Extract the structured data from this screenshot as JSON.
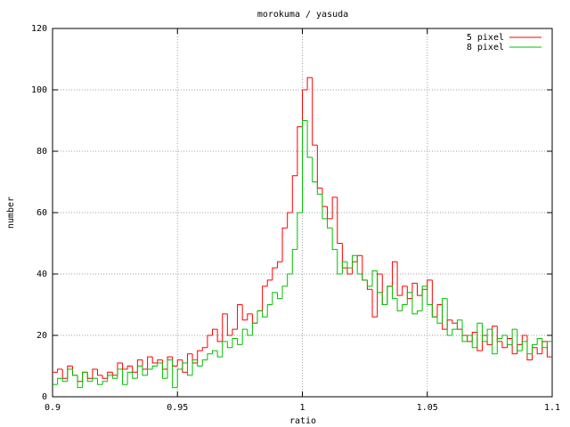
{
  "chart_data": {
    "type": "histogram",
    "title": "morokuma / yasuda",
    "xlabel": "ratio",
    "ylabel": "number",
    "bins": [
      0.9,
      0.902,
      0.904,
      0.906,
      0.908,
      0.91,
      0.912,
      0.914,
      0.916,
      0.918,
      0.92,
      0.922,
      0.924,
      0.926,
      0.928,
      0.93,
      0.932,
      0.934,
      0.936,
      0.938,
      0.94,
      0.942,
      0.944,
      0.946,
      0.948,
      0.95,
      0.952,
      0.954,
      0.956,
      0.958,
      0.96,
      0.962,
      0.964,
      0.966,
      0.968,
      0.97,
      0.972,
      0.974,
      0.976,
      0.978,
      0.98,
      0.982,
      0.984,
      0.986,
      0.988,
      0.99,
      0.992,
      0.994,
      0.996,
      0.998,
      1.0,
      1.002,
      1.004,
      1.006,
      1.008,
      1.01,
      1.012,
      1.014,
      1.016,
      1.018,
      1.02,
      1.022,
      1.024,
      1.026,
      1.028,
      1.03,
      1.032,
      1.034,
      1.036,
      1.038,
      1.04,
      1.042,
      1.044,
      1.046,
      1.048,
      1.05,
      1.052,
      1.054,
      1.056,
      1.058,
      1.06,
      1.062,
      1.064,
      1.066,
      1.068,
      1.07,
      1.072,
      1.074,
      1.076,
      1.078,
      1.08,
      1.082,
      1.084,
      1.086,
      1.088,
      1.09,
      1.092,
      1.094,
      1.096,
      1.098,
      1.1
    ],
    "series": [
      {
        "name": "5 pixel",
        "color": "#ff0000",
        "values": [
          8,
          9,
          6,
          10,
          7,
          5,
          8,
          6,
          9,
          7,
          6,
          8,
          7,
          11,
          9,
          10,
          8,
          12,
          9,
          13,
          11,
          12,
          9,
          13,
          10,
          12,
          8,
          14,
          11,
          15,
          16,
          20,
          22,
          18,
          27,
          20,
          22,
          30,
          25,
          27,
          24,
          28,
          36,
          38,
          42,
          44,
          55,
          60,
          72,
          88,
          100,
          104,
          82,
          68,
          62,
          58,
          65,
          50,
          42,
          40,
          44,
          46,
          38,
          35,
          26,
          40,
          30,
          36,
          44,
          33,
          36,
          32,
          37,
          33,
          35,
          38,
          26,
          30,
          22,
          25,
          24,
          22,
          20,
          18,
          21,
          15,
          20,
          17,
          23,
          18,
          16,
          19,
          14,
          17,
          20,
          12,
          16,
          14,
          18,
          13
        ]
      },
      {
        "name": "8 pixel",
        "color": "#00c000",
        "values": [
          4,
          6,
          5,
          9,
          7,
          3,
          8,
          5,
          6,
          4,
          5,
          7,
          6,
          9,
          4,
          8,
          6,
          10,
          7,
          9,
          10,
          11,
          6,
          12,
          3,
          9,
          11,
          7,
          12,
          10,
          12,
          14,
          15,
          13,
          18,
          16,
          19,
          17,
          22,
          20,
          24,
          28,
          26,
          30,
          34,
          32,
          36,
          40,
          48,
          60,
          90,
          78,
          70,
          66,
          58,
          55,
          48,
          40,
          44,
          42,
          46,
          40,
          38,
          36,
          41,
          34,
          30,
          36,
          32,
          28,
          30,
          34,
          27,
          28,
          36,
          30,
          26,
          24,
          32,
          20,
          22,
          25,
          18,
          20,
          16,
          24,
          18,
          22,
          14,
          19,
          20,
          17,
          22,
          15,
          18,
          14,
          17,
          19,
          16,
          18
        ]
      }
    ],
    "xlim": [
      0.9,
      1.1
    ],
    "ylim": [
      0,
      120
    ],
    "xticks": [
      0.9,
      0.95,
      1,
      1.05,
      1.1
    ],
    "yticks": [
      0,
      20,
      40,
      60,
      80,
      100,
      120
    ],
    "grid": true,
    "legend": "top-right"
  }
}
